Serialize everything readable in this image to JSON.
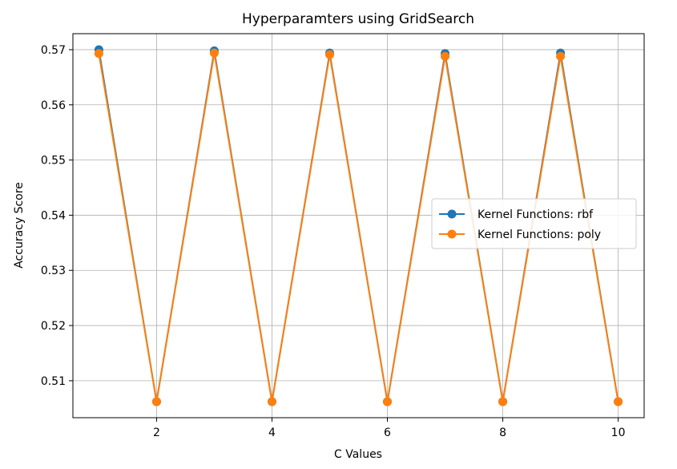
{
  "chart_data": {
    "type": "line",
    "title": "Hyperparamters using GridSearch",
    "xlabel": "C Values",
    "ylabel": "Accuracy Score",
    "x": [
      1,
      2,
      3,
      4,
      5,
      6,
      7,
      8,
      9,
      10
    ],
    "xticks": [
      "2",
      "4",
      "6",
      "8",
      "10"
    ],
    "xtick_values": [
      2,
      4,
      6,
      8,
      10
    ],
    "yticks": [
      "0.51",
      "0.52",
      "0.53",
      "0.54",
      "0.55",
      "0.56",
      "0.57"
    ],
    "ytick_values": [
      0.51,
      0.52,
      0.53,
      0.54,
      0.55,
      0.56,
      0.57
    ],
    "xlim": [
      0.55,
      10.45
    ],
    "ylim": [
      0.5033,
      0.5729
    ],
    "grid": true,
    "legend_position": "center-right",
    "series": [
      {
        "name": "Kernel Functions: rbf",
        "color": "#1f77b4",
        "marker": "circle",
        "values": [
          0.57,
          0.5062,
          0.5698,
          0.5062,
          0.5694,
          0.5062,
          0.5693,
          0.5062,
          0.5694,
          0.5062
        ]
      },
      {
        "name": "Kernel Functions: poly",
        "color": "#ff7f0e",
        "marker": "circle",
        "values": [
          0.5693,
          0.5062,
          0.5694,
          0.5062,
          0.5691,
          0.5062,
          0.5688,
          0.5062,
          0.5688,
          0.5062
        ]
      }
    ]
  }
}
